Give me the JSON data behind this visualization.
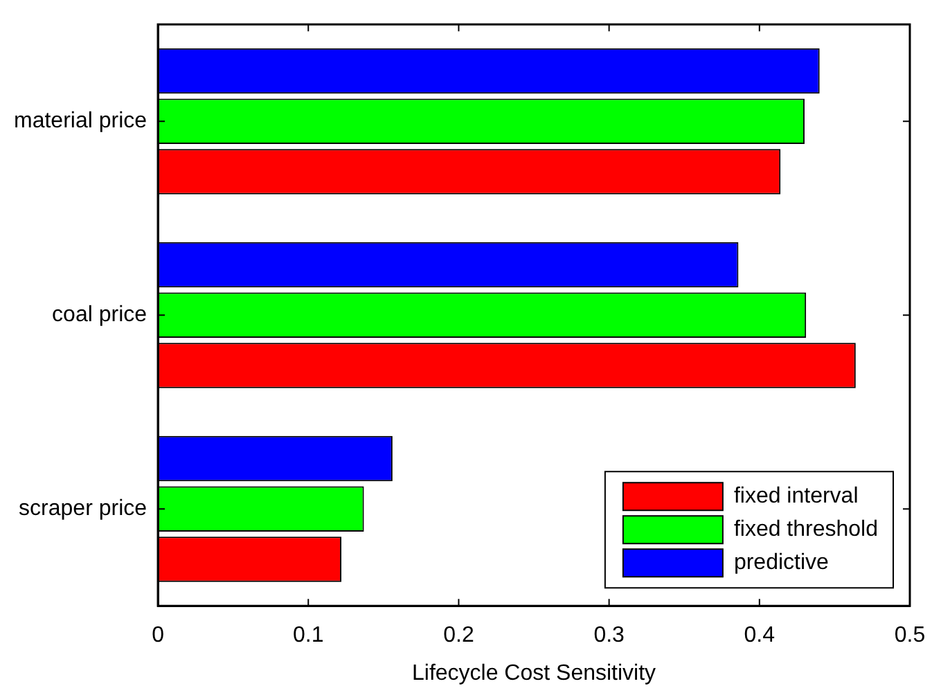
{
  "chart_data": {
    "type": "bar",
    "orientation": "horizontal",
    "xlabel": "Lifecycle Cost Sensitivity",
    "categories": [
      "material price",
      "coal price",
      "scraper price"
    ],
    "series": [
      {
        "name": "fixed interval",
        "color": "#ff0000",
        "values": [
          0.414,
          0.464,
          0.122
        ]
      },
      {
        "name": "fixed threshold",
        "color": "#00ff00",
        "values": [
          0.43,
          0.431,
          0.137
        ]
      },
      {
        "name": "predictive",
        "color": "#0000ff",
        "values": [
          0.44,
          0.386,
          0.156
        ]
      }
    ],
    "xlim": [
      0,
      0.5
    ],
    "xticks": [
      0,
      0.1,
      0.2,
      0.3,
      0.4,
      0.5
    ],
    "grid": false,
    "legend": "bottom right"
  }
}
